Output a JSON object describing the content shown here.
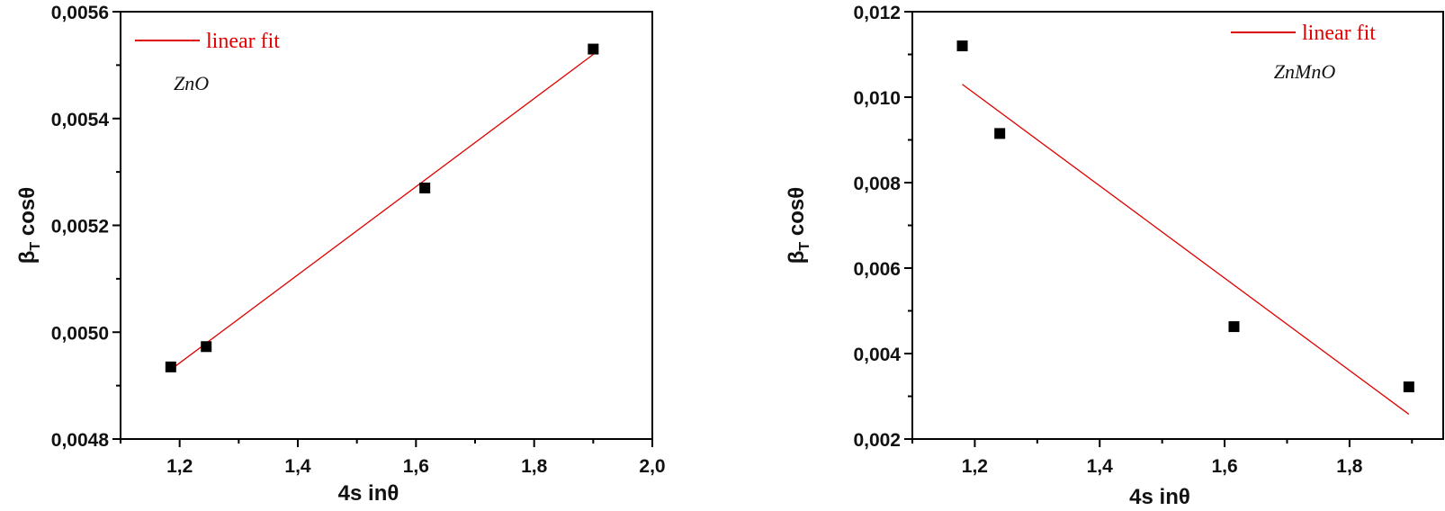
{
  "colors": {
    "fit": "#e00000",
    "points": "#000000",
    "axes": "#000000"
  },
  "chart_data": [
    {
      "type": "scatter",
      "xlabel": "4s inθ",
      "ylabel_main": "β",
      "ylabel_sub": "T",
      "ylabel_rest": " cosθ",
      "xlim": [
        1.1,
        2.0
      ],
      "ylim": [
        0.0048,
        0.0056
      ],
      "xticks": [
        1.2,
        1.4,
        1.6,
        1.8,
        2.0
      ],
      "xtick_labels": [
        "1,2",
        "1,4",
        "1,6",
        "1,8",
        "2,0"
      ],
      "yticks": [
        0.0048,
        0.005,
        0.0052,
        0.0054,
        0.0056
      ],
      "ytick_labels": [
        "0,0048",
        "0,0050",
        "0,0052",
        "0,0054",
        "0,0056"
      ],
      "grid": false,
      "annotation": "ZnO",
      "legend": {
        "label": "linear fit",
        "position": "top-left"
      },
      "points": {
        "x": [
          1.185,
          1.245,
          1.615,
          1.9
        ],
        "y": [
          0.004935,
          0.004973,
          0.00527,
          0.00553
        ]
      },
      "fit": {
        "name": "linear fit",
        "x": [
          1.185,
          1.9
        ],
        "y": [
          0.00493,
          0.00552
        ]
      }
    },
    {
      "type": "scatter",
      "xlabel": "4s inθ",
      "ylabel_main": "β",
      "ylabel_sub": "T",
      "ylabel_rest": " cosθ",
      "xlim": [
        1.1,
        1.95
      ],
      "ylim": [
        0.002,
        0.012
      ],
      "xticks": [
        1.2,
        1.4,
        1.6,
        1.8
      ],
      "xtick_labels": [
        "1,2",
        "1,4",
        "1,6",
        "1,8"
      ],
      "yticks": [
        0.002,
        0.004,
        0.006,
        0.008,
        0.01,
        0.012
      ],
      "ytick_labels": [
        "0,002",
        "0,004",
        "0,006",
        "0,008",
        "0,010",
        "0,012"
      ],
      "grid": false,
      "annotation": "ZnMnO",
      "legend": {
        "label": "linear fit",
        "position": "top-right"
      },
      "points": {
        "x": [
          1.18,
          1.24,
          1.615,
          1.895
        ],
        "y": [
          0.0112,
          0.00915,
          0.00463,
          0.00322
        ]
      },
      "fit": {
        "name": "linear fit",
        "x": [
          1.18,
          1.895
        ],
        "y": [
          0.0103,
          0.00258
        ]
      }
    }
  ]
}
